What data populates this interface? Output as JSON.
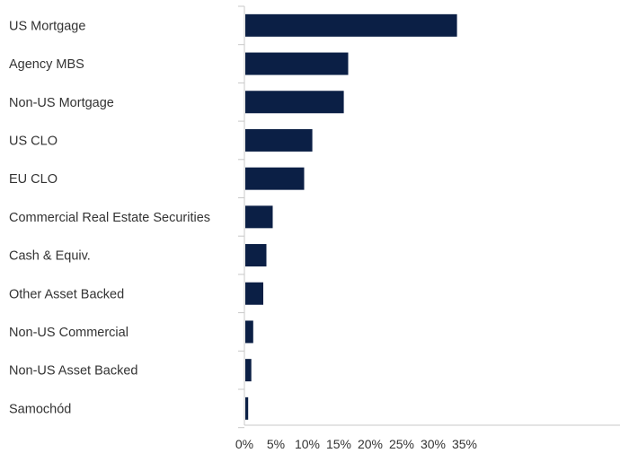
{
  "chart_data": {
    "type": "bar",
    "orientation": "horizontal",
    "title": "",
    "xlabel": "",
    "ylabel": "",
    "categories": [
      "US Mortgage",
      "Agency MBS",
      "Non-US Mortgage",
      "US CLO",
      "EU CLO",
      "Commercial Real Estate Securities",
      "Cash & Equiv.",
      "Other Asset Backed",
      "Non-US Commercial",
      "Non-US Asset Backed",
      "Samochód"
    ],
    "values": [
      33.8,
      16.5,
      15.8,
      10.8,
      9.5,
      4.5,
      3.5,
      3.0,
      1.4,
      1.1,
      0.6
    ],
    "xlim": [
      0,
      40
    ],
    "x_ticks": [
      0,
      5,
      10,
      15,
      20,
      25,
      30,
      35
    ],
    "x_tick_labels": [
      "0%",
      "5%",
      "10%",
      "15%",
      "20%",
      "25%",
      "30%",
      "35%"
    ],
    "value_unit": "%",
    "bar_color": "#0b1f45",
    "axis_color": "#c8c8c8",
    "grid": false,
    "legend": "none"
  }
}
